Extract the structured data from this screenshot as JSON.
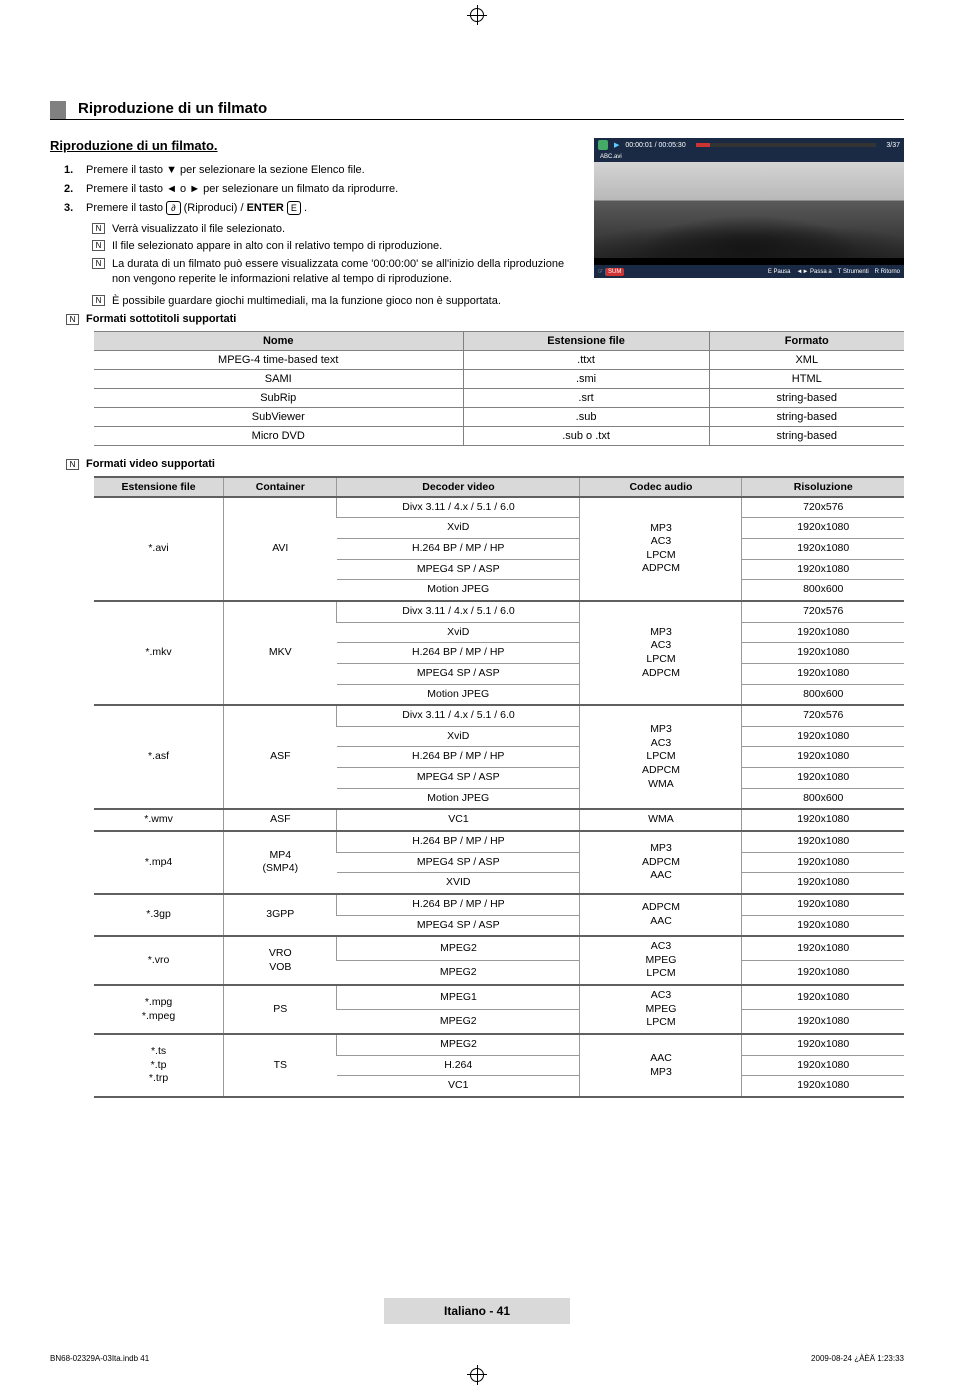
{
  "cropmarks": {
    "style": "registration"
  },
  "section": {
    "title": "Riproduzione di un filmato"
  },
  "subsection": {
    "title": "Riproduzione di un filmato."
  },
  "steps": [
    {
      "num": "1.",
      "text": "Premere il tasto ▼ per selezionare la sezione Elenco file."
    },
    {
      "num": "2.",
      "text": "Premere il tasto ◄ o ► per selezionare un filmato da riprodurre."
    },
    {
      "num": "3.",
      "text_before": "Premere il tasto ",
      "play_label": "∂",
      "text_mid": " (Riproduci) / ",
      "enter_bold": "ENTER",
      "enter_icon": "E",
      "text_after": "."
    }
  ],
  "notes_after_step3": [
    "Verrà visualizzato il file selezionato.",
    "Il file selezionato appare in alto con il relativo tempo di riproduzione.",
    "La durata di un filmato può essere visualizzata come '00:00:00' se all'inizio della riproduzione non vengono reperite le informazioni relative al tempo di riproduzione.",
    "È possibile guardare giochi multimediali, ma la funzione gioco non è supportata."
  ],
  "subtitle_section_label": "Formati sottotitoli supportati",
  "subtitle_table": {
    "headers": [
      "Nome",
      "Estensione file",
      "Formato"
    ],
    "rows": [
      [
        "MPEG-4 time-based text",
        ".ttxt",
        "XML"
      ],
      [
        "SAMI",
        ".smi",
        "HTML"
      ],
      [
        "SubRip",
        ".srt",
        "string-based"
      ],
      [
        "SubViewer",
        ".sub",
        "string-based"
      ],
      [
        "Micro DVD",
        ".sub o .txt",
        "string-based"
      ]
    ]
  },
  "video_section_label": "Formati video supportati",
  "video_table": {
    "headers": [
      "Estensione file",
      "Container",
      "Decoder video",
      "Codec audio",
      "Risoluzione"
    ],
    "groups": [
      {
        "ext": "*.avi",
        "container": "AVI",
        "audio": "MP3\nAC3\nLPCM\nADPCM",
        "rows": [
          [
            "Divx 3.11 / 4.x / 5.1 / 6.0",
            "720x576"
          ],
          [
            "XviD",
            "1920x1080"
          ],
          [
            "H.264 BP / MP / HP",
            "1920x1080"
          ],
          [
            "MPEG4 SP / ASP",
            "1920x1080"
          ],
          [
            "Motion JPEG",
            "800x600"
          ]
        ]
      },
      {
        "ext": "*.mkv",
        "container": "MKV",
        "audio": "MP3\nAC3\nLPCM\nADPCM",
        "rows": [
          [
            "Divx 3.11 / 4.x / 5.1 / 6.0",
            "720x576"
          ],
          [
            "XviD",
            "1920x1080"
          ],
          [
            "H.264 BP / MP / HP",
            "1920x1080"
          ],
          [
            "MPEG4 SP / ASP",
            "1920x1080"
          ],
          [
            "Motion JPEG",
            "800x600"
          ]
        ]
      },
      {
        "ext": "*.asf",
        "container": "ASF",
        "audio": "MP3\nAC3\nLPCM\nADPCM\nWMA",
        "rows": [
          [
            "Divx 3.11 / 4.x / 5.1 / 6.0",
            "720x576"
          ],
          [
            "XviD",
            "1920x1080"
          ],
          [
            "H.264 BP / MP / HP",
            "1920x1080"
          ],
          [
            "MPEG4 SP / ASP",
            "1920x1080"
          ],
          [
            "Motion JPEG",
            "800x600"
          ]
        ]
      },
      {
        "ext": "*.wmv",
        "container": "ASF",
        "audio": "WMA",
        "rows": [
          [
            "VC1",
            "1920x1080"
          ]
        ]
      },
      {
        "ext": "*.mp4",
        "container": "MP4\n(SMP4)",
        "audio": "MP3\nADPCM\nAAC",
        "rows": [
          [
            "H.264 BP / MP / HP",
            "1920x1080"
          ],
          [
            "MPEG4 SP / ASP",
            "1920x1080"
          ],
          [
            "XVID",
            "1920x1080"
          ]
        ]
      },
      {
        "ext": "*.3gp",
        "container": "3GPP",
        "audio": "ADPCM\nAAC",
        "rows": [
          [
            "H.264 BP / MP / HP",
            "1920x1080"
          ],
          [
            "MPEG4 SP / ASP",
            "1920x1080"
          ]
        ]
      },
      {
        "ext": "*.vro",
        "container": "VRO\nVOB",
        "audio": "AC3\nMPEG\nLPCM",
        "rows": [
          [
            "MPEG2",
            "1920x1080"
          ],
          [
            "MPEG2",
            "1920x1080"
          ]
        ]
      },
      {
        "ext": "*.mpg\n*.mpeg",
        "container": "PS",
        "audio": "AC3\nMPEG\nLPCM",
        "rows": [
          [
            "MPEG1",
            "1920x1080"
          ],
          [
            "MPEG2",
            "1920x1080"
          ]
        ]
      },
      {
        "ext": "*.ts\n*.tp\n*.trp",
        "container": "TS",
        "audio": "AAC\nMP3",
        "rows": [
          [
            "MPEG2",
            "1920x1080"
          ],
          [
            "H.264",
            "1920x1080"
          ],
          [
            "VC1",
            "1920x1080"
          ]
        ]
      }
    ]
  },
  "player": {
    "time": "00:00:01 / 00:05:30",
    "counter": "3/37",
    "filename": "ABC.avi",
    "sum": "SUM",
    "controls": [
      "E Pausa",
      "◄► Passa a",
      "T Strumenti",
      "R Ritorno"
    ]
  },
  "footer": {
    "label": "Italiano - 41",
    "left": "BN68-02329A-03Ita.indb   41",
    "right": "2009-08-24   ¿ÀÈÄ 1:23:33"
  }
}
